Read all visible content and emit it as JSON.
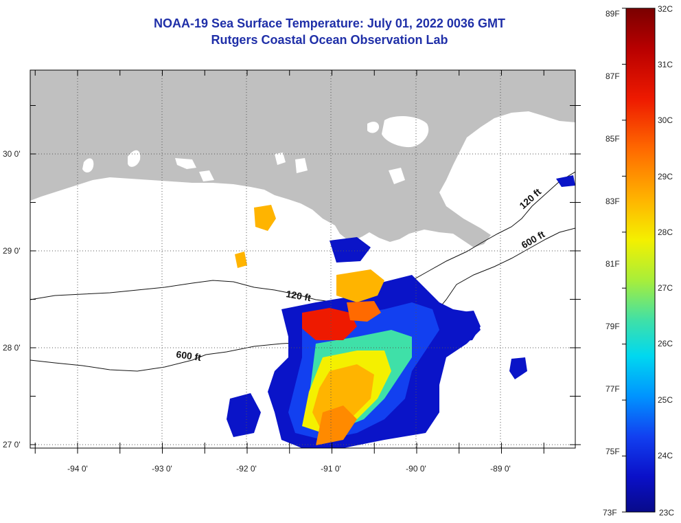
{
  "title": "NOAA-19 Sea Surface Temperature:  July 01, 2022 0036 GMT",
  "subtitle": "Rutgers Coastal Ocean Observation Lab",
  "axes": {
    "lat_labels": [
      "30 0'",
      "29 0'",
      "28 0'",
      "27 0'"
    ],
    "lon_labels": [
      "-94 0'",
      "-93 0'",
      "-92 0'",
      "-91 0'",
      "-90 0'",
      "-89 0'"
    ]
  },
  "isobaths": [
    "120 ft",
    "600 ft",
    "120 ft",
    "600 ft"
  ],
  "colorbar": {
    "fahrenheit": [
      "89F",
      "87F",
      "85F",
      "83F",
      "81F",
      "79F",
      "77F",
      "75F",
      "73F"
    ],
    "celsius": [
      "32C",
      "31C",
      "30C",
      "29C",
      "28C",
      "27C",
      "26C",
      "25C",
      "24C",
      "23C"
    ],
    "colors": [
      "#7a0000",
      "#b80000",
      "#ee1a00",
      "#ff6a00",
      "#ffb400",
      "#f4f000",
      "#a8ee3a",
      "#3fe0a8",
      "#00d8f0",
      "#0094ff",
      "#1240f0",
      "#0a10c8",
      "#080a8a"
    ]
  },
  "colors": {
    "land": "#c0c0c0",
    "title": "#1f2fa8",
    "grid": "#555555"
  }
}
